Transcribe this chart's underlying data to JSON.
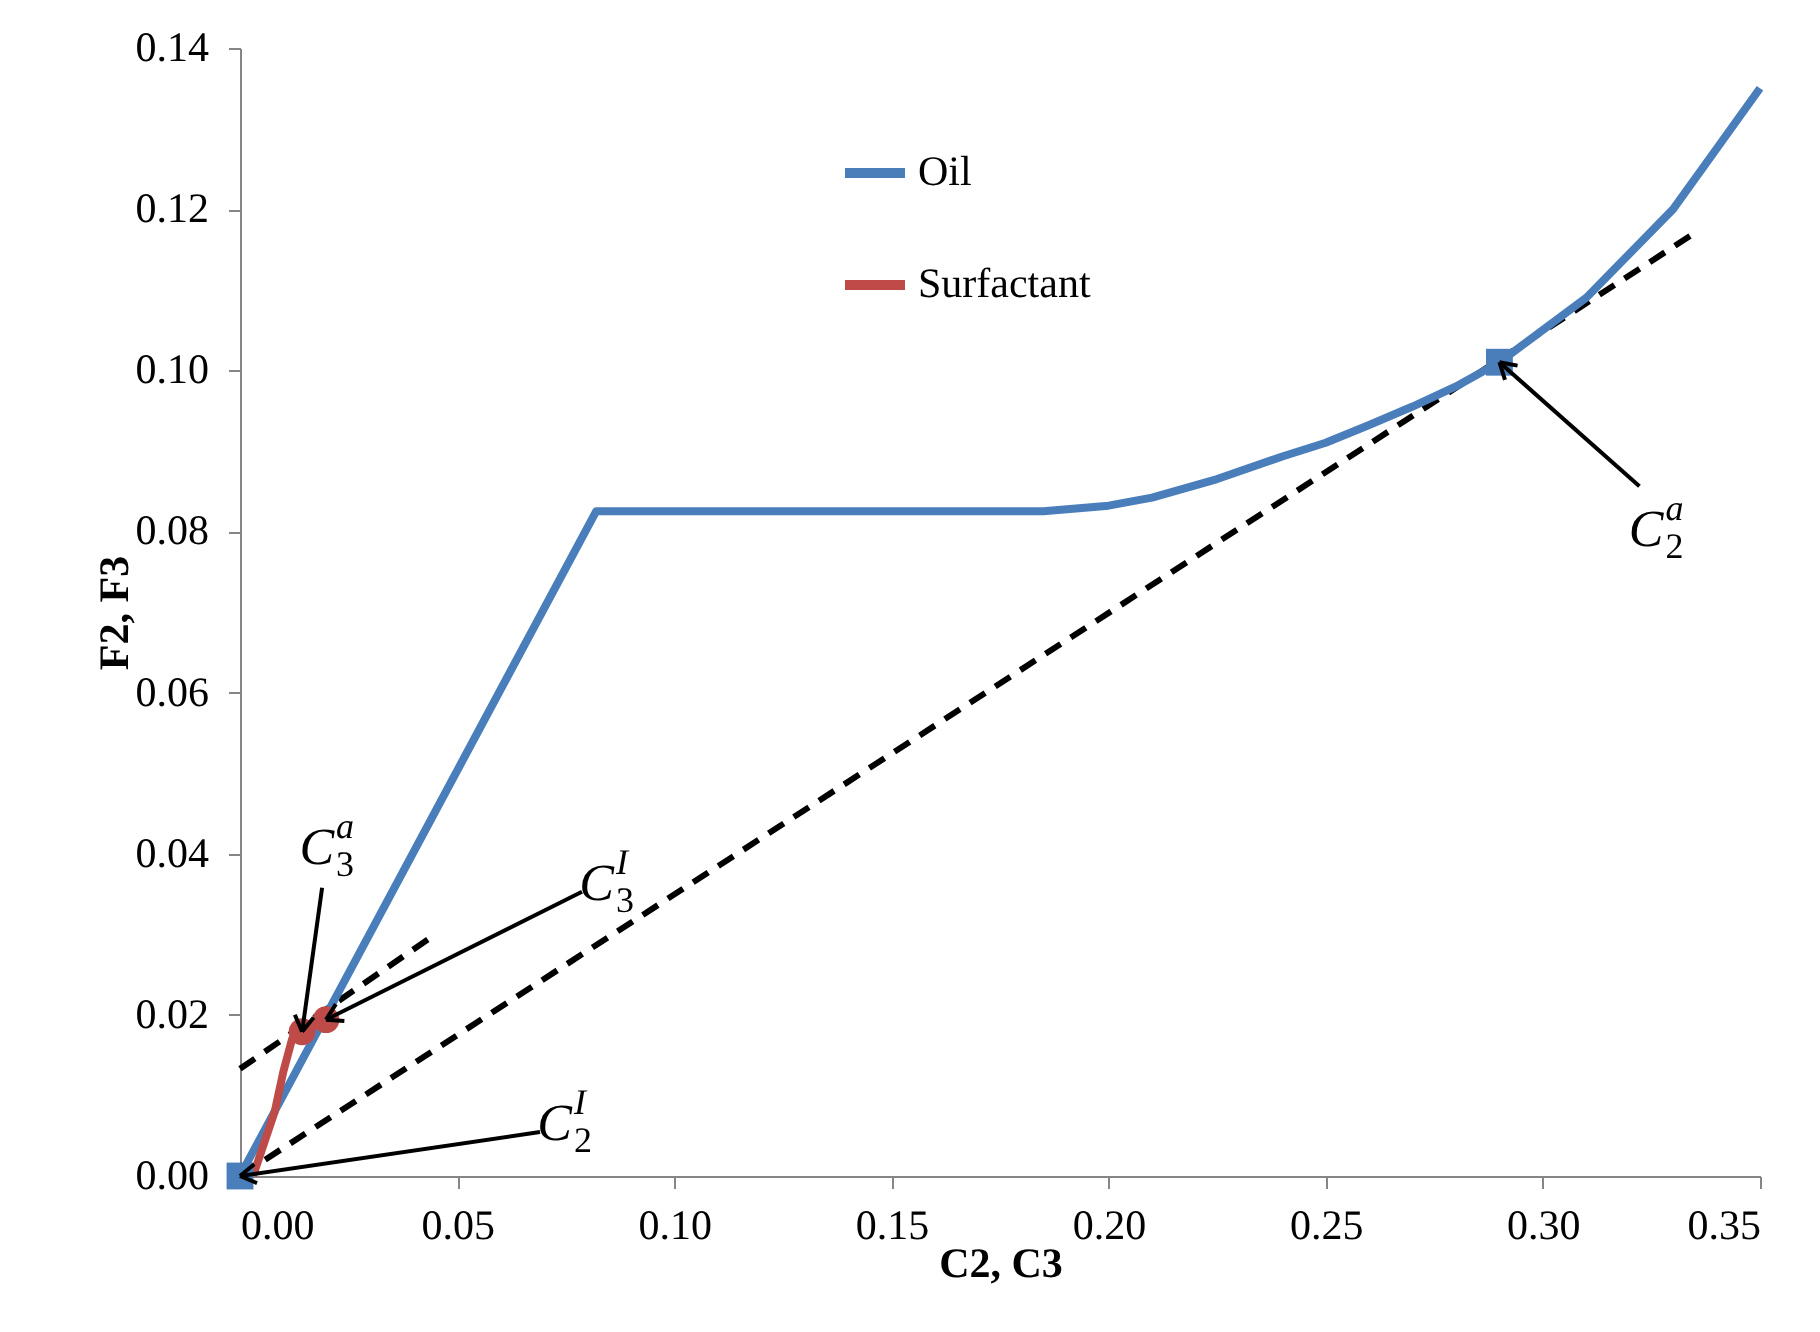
{
  "chart_data": {
    "type": "line",
    "xlabel": "C2, C3",
    "ylabel": "F2, F3",
    "xlim": [
      0,
      0.35
    ],
    "ylim": [
      0,
      0.14
    ],
    "xticks": [
      {
        "value": 0,
        "label": "0.00"
      },
      {
        "value": 0.05,
        "label": "0.05"
      },
      {
        "value": 0.1,
        "label": "0.10"
      },
      {
        "value": 0.15,
        "label": "0.15"
      },
      {
        "value": 0.2,
        "label": "0.20"
      },
      {
        "value": 0.25,
        "label": "0.25"
      },
      {
        "value": 0.3,
        "label": "0.30"
      },
      {
        "value": 0.35,
        "label": "0.35"
      }
    ],
    "yticks": [
      {
        "value": 0,
        "label": "0.00"
      },
      {
        "value": 0.02,
        "label": "0.02"
      },
      {
        "value": 0.04,
        "label": "0.04"
      },
      {
        "value": 0.06,
        "label": "0.06"
      },
      {
        "value": 0.08,
        "label": "0.08"
      },
      {
        "value": 0.1,
        "label": "0.10"
      },
      {
        "value": 0.12,
        "label": "0.12"
      },
      {
        "value": 0.14,
        "label": "0.14"
      }
    ],
    "grid": false,
    "legend": "top",
    "series": [
      {
        "line_style": "dashed",
        "color": "#000000",
        "x": [
          0,
          0.334
        ],
        "values": [
          0,
          0.1167
        ]
      },
      {
        "line_style": "dashed",
        "color": "#000000",
        "x": [
          0,
          0.045
        ],
        "values": [
          0.0133,
          0.03
        ]
      },
      {
        "name": "Oil",
        "color": "#4a7ebb",
        "x": [
          0,
          0.082,
          0.12,
          0.185,
          0.2,
          0.21,
          0.225,
          0.24,
          0.25,
          0.26,
          0.27,
          0.28,
          0.29,
          0.3,
          0.31,
          0.32,
          0.33,
          0.34,
          0.35
        ],
        "values": [
          0,
          0.0825,
          0.0825,
          0.0825,
          0.0832,
          0.0842,
          0.0865,
          0.0893,
          0.091,
          0.0932,
          0.0955,
          0.098,
          0.101,
          0.105,
          0.109,
          0.1145,
          0.12,
          0.1275,
          0.135
        ]
      },
      {
        "name": "Surfactant",
        "color": "#be4b48",
        "x": [
          0.003,
          0.008,
          0.01,
          0.012,
          0.0143,
          0.0198
        ],
        "values": [
          0.0,
          0.008,
          0.013,
          0.017,
          0.0179,
          0.0194
        ]
      },
      {
        "type": "scatter",
        "marker": "square",
        "color": "#4a7ebb",
        "x": [
          0,
          0.29
        ],
        "values": [
          0,
          0.101
        ]
      },
      {
        "type": "scatter",
        "marker": "circle",
        "color": "#be4b48",
        "x": [
          0.0143,
          0.0198
        ],
        "values": [
          0.0179,
          0.0194
        ]
      }
    ],
    "annotations": [
      {
        "text": "C$_{3}$$^{a}$",
        "x": 0.0143,
        "y": 0.0179
      },
      {
        "text": "C$_{3}$$^{I}$",
        "x": 0.0198,
        "y": 0.0194
      },
      {
        "text": "C$_{2}$$^{I}$",
        "x": 0,
        "y": 0
      },
      {
        "text": "C$_{2}$$^{a}$",
        "x": 0.29,
        "y": 0.101
      }
    ]
  }
}
